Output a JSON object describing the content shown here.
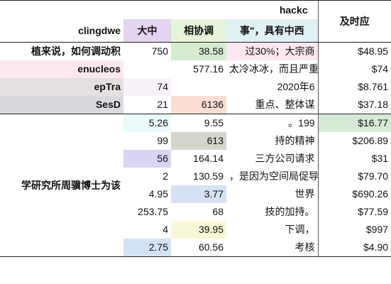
{
  "header": {
    "group_label": "hackc",
    "timely_label": "及时应",
    "row_header_label": "clingdwe",
    "col_a": "大中",
    "col_b": "相协调",
    "col_c": "事\"，具有中西"
  },
  "colors": {
    "col_a_header": "#e3d4f0",
    "col_b_header": "#e6f4d8",
    "col_c_header": "#e0f1f6",
    "group_a": "#fde8f1",
    "group_b": "#e6dfe0",
    "group_c": "#d9dade"
  },
  "groups": [
    {
      "label": "植来说，如何调动积"
    },
    {
      "label": "enucleos"
    },
    {
      "label": "epTra"
    },
    {
      "label": "SesD"
    },
    {
      "label": "学研究所周骥博士为该"
    }
  ],
  "rows": [
    {
      "a": "750",
      "b": "38.58",
      "c": "过30%；大宗商",
      "d": "$48.95",
      "a_bg": "",
      "b_bg": "#d5ecd0",
      "c_bg": "#fde8f1",
      "d_bg": ""
    },
    {
      "a": "",
      "b": "577.16",
      "c": "太冷冰冰，而且严重",
      "d": "$74",
      "a_bg": "",
      "b_bg": "",
      "c_bg": "",
      "d_bg": ""
    },
    {
      "a": "74",
      "b": "",
      "c": "2020年6",
      "d": "$8.761",
      "a_bg": "#faf2fa",
      "b_bg": "",
      "c_bg": "",
      "d_bg": ""
    },
    {
      "a": "21",
      "b": "6136",
      "c": "重点、整体谋",
      "d": "$37.18",
      "a_bg": "",
      "b_bg": "#fcded4",
      "c_bg": "",
      "d_bg": ""
    },
    {
      "a": "5.26",
      "b": "9.55",
      "c": "。199",
      "d": "$16.77",
      "a_bg": "#e9fbfb",
      "b_bg": "",
      "c_bg": "",
      "d_bg": "#d5ead5"
    },
    {
      "a": "99",
      "b": "613",
      "c": "持的精神",
      "d": "$206.89",
      "a_bg": "",
      "b_bg": "#d5d5cc",
      "c_bg": "",
      "d_bg": ""
    },
    {
      "a": "56",
      "b": "164.14",
      "c": "三方公司请求",
      "d": "$31",
      "a_bg": "#d8d4f4",
      "b_bg": "",
      "c_bg": "",
      "d_bg": ""
    },
    {
      "a": "2",
      "b": "130.59",
      "c": "，是因为空间局促导",
      "d": "$79.70",
      "a_bg": "",
      "b_bg": "",
      "c_bg": "",
      "d_bg": ""
    },
    {
      "a": "4.95",
      "b": "3.77",
      "c": "世界",
      "d": "$690.26",
      "a_bg": "",
      "b_bg": "#d4e2f4",
      "c_bg": "",
      "d_bg": ""
    },
    {
      "a": "253.75",
      "b": "68",
      "c": "技的加持。",
      "d": "$77.59",
      "a_bg": "",
      "b_bg": "",
      "c_bg": "",
      "d_bg": ""
    },
    {
      "a": "4",
      "b": "39.95",
      "c": "下调，",
      "d": "$997",
      "a_bg": "",
      "b_bg": "#f8f8d8",
      "c_bg": "",
      "d_bg": ""
    },
    {
      "a": "2.75",
      "b": "60.56",
      "c": "考核",
      "d": "$4.90",
      "a_bg": "#d3e3f4",
      "b_bg": "",
      "c_bg": "",
      "d_bg": ""
    }
  ]
}
